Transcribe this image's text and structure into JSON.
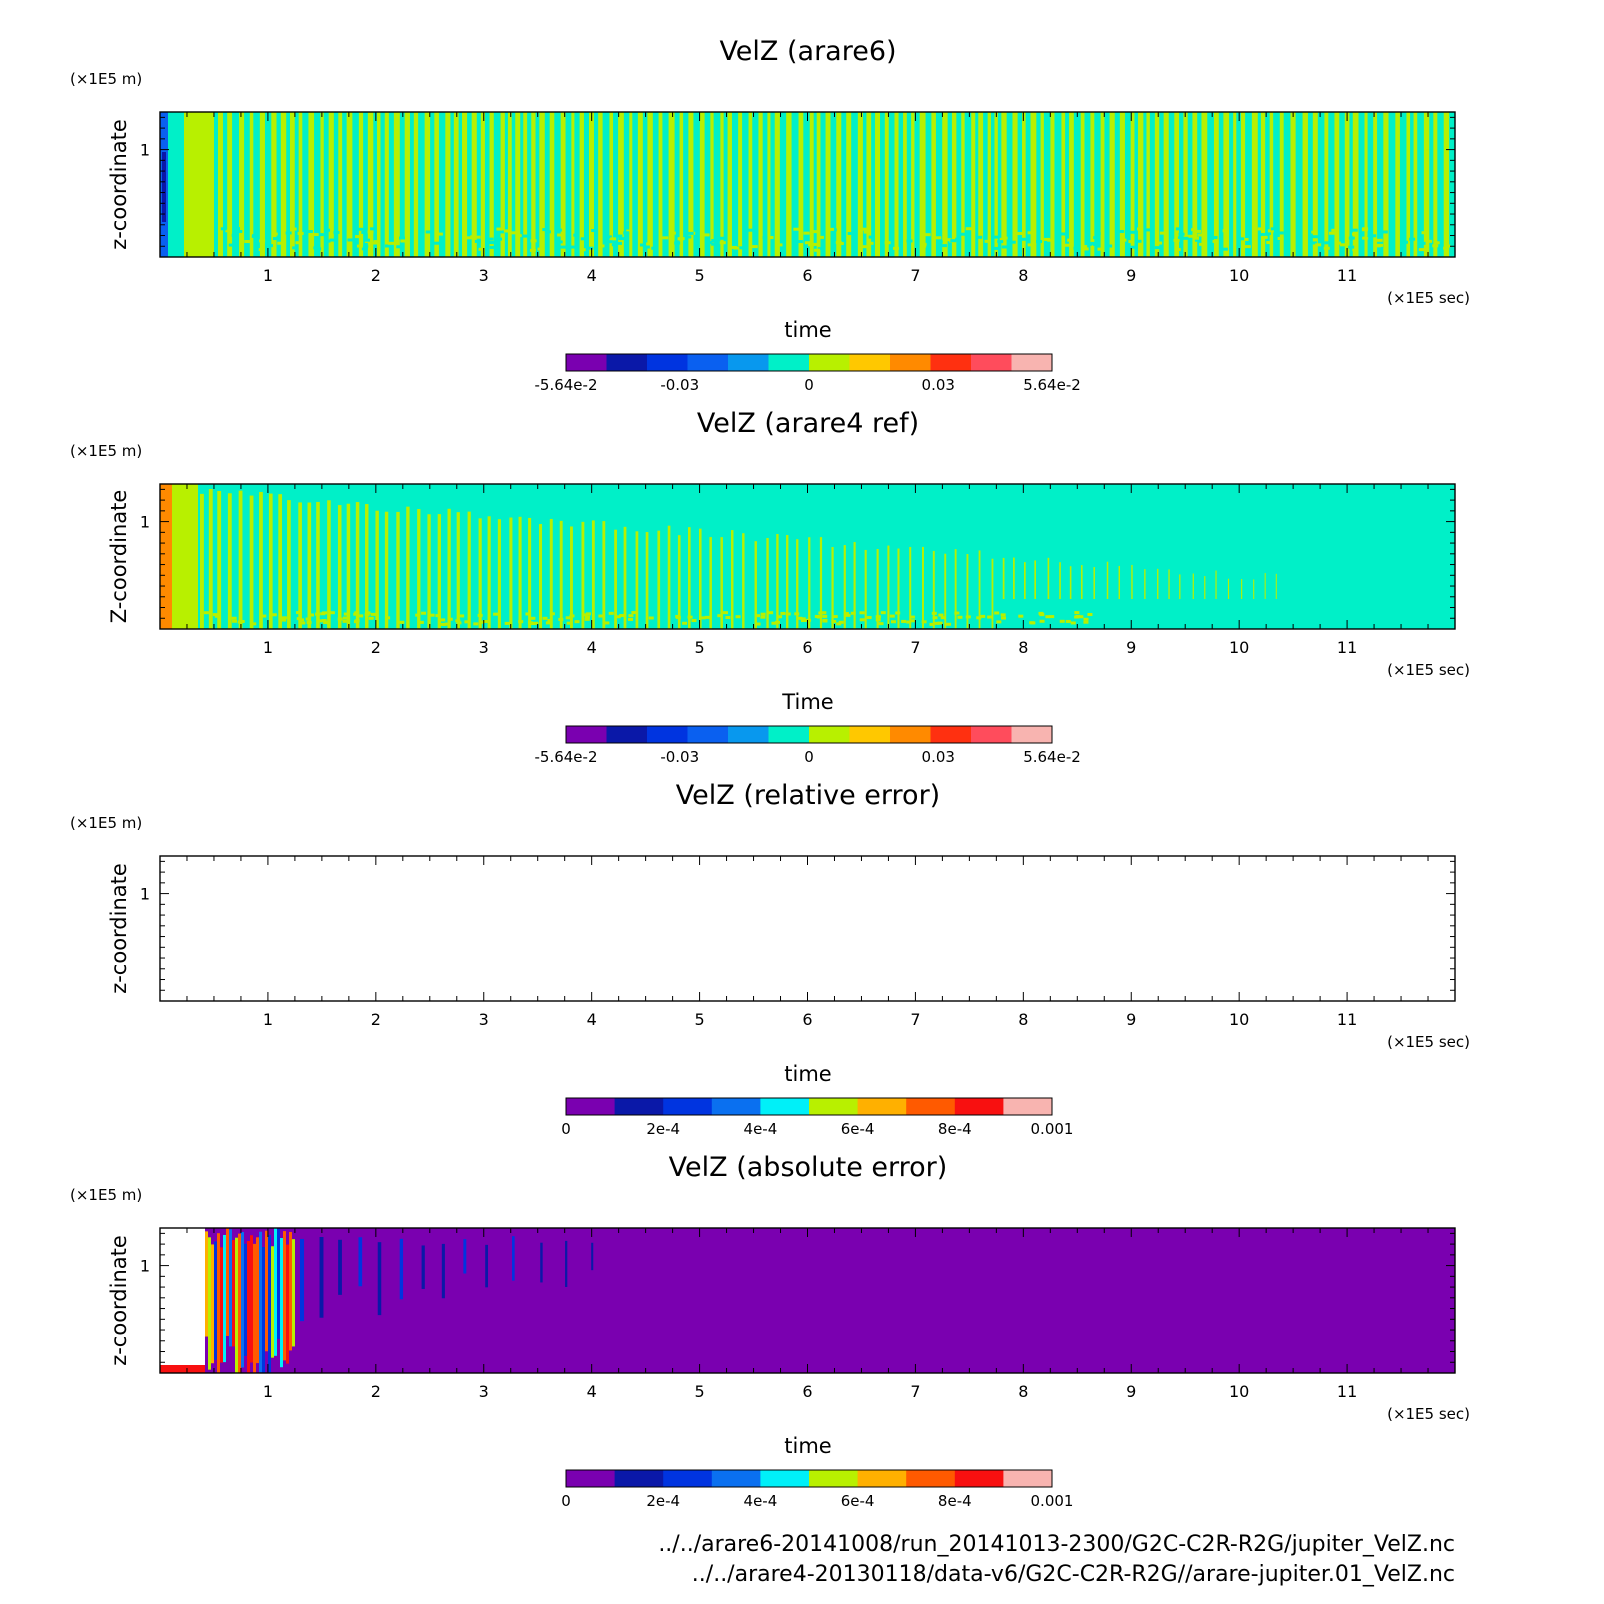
{
  "chart_data": [
    {
      "type": "heatmap",
      "title": "VelZ (arare6)",
      "xlabel": "time",
      "ylabel": "z-coordinate",
      "xunit": "(×1E5 sec)",
      "yunit": "(×1E5 m)",
      "xlim": [
        0,
        12
      ],
      "ylim": [
        0,
        1.35
      ],
      "xticks": [
        1,
        2,
        3,
        4,
        5,
        6,
        7,
        8,
        9,
        10,
        11
      ],
      "yticks": [
        1
      ],
      "pattern": "oscillating",
      "colorbar": {
        "range": [
          -0.0564,
          0.0564
        ],
        "tick_labels": [
          "-5.64e-2",
          "-0.03",
          "0",
          "0.03",
          "5.64e-2"
        ],
        "colors": [
          "#7a00b0",
          "#0a18a8",
          "#0034e0",
          "#0a60f0",
          "#0898ee",
          "#00f0c8",
          "#b8f000",
          "#ffc800",
          "#ff8a00",
          "#ff3010",
          "#ff4c5c",
          "#f8b4b0"
        ]
      }
    },
    {
      "type": "heatmap",
      "title": "VelZ (arare4 ref)",
      "xlabel": "Time",
      "ylabel": "Z-coordinate",
      "xunit": "(×1E5 sec)",
      "yunit": "(×1E5 m)",
      "xlim": [
        0,
        12
      ],
      "ylim": [
        0,
        1.35
      ],
      "xticks": [
        1,
        2,
        3,
        4,
        5,
        6,
        7,
        8,
        9,
        10,
        11
      ],
      "yticks": [
        1
      ],
      "pattern": "decaying",
      "colorbar": {
        "range": [
          -0.0564,
          0.0564
        ],
        "tick_labels": [
          "-5.64e-2",
          "-0.03",
          "0",
          "0.03",
          "5.64e-2"
        ],
        "colors": [
          "#7a00b0",
          "#0a18a8",
          "#0034e0",
          "#0a60f0",
          "#0898ee",
          "#00f0c8",
          "#b8f000",
          "#ffc800",
          "#ff8a00",
          "#ff3010",
          "#ff4c5c",
          "#f8b4b0"
        ]
      }
    },
    {
      "type": "heatmap",
      "title": "VelZ (relative error)",
      "xlabel": "time",
      "ylabel": "z-coordinate",
      "xunit": "(×1E5 sec)",
      "yunit": "(×1E5 m)",
      "xlim": [
        0,
        12
      ],
      "ylim": [
        0,
        1.35
      ],
      "xticks": [
        1,
        2,
        3,
        4,
        5,
        6,
        7,
        8,
        9,
        10,
        11
      ],
      "yticks": [
        1
      ],
      "pattern": "empty",
      "colorbar": {
        "range": [
          0,
          0.001
        ],
        "tick_labels": [
          "0",
          "2e-4",
          "4e-4",
          "6e-4",
          "8e-4",
          "0.001"
        ],
        "colors": [
          "#7a00b0",
          "#0a18a8",
          "#0034e0",
          "#0a70f0",
          "#00f0f8",
          "#b8f000",
          "#ffb000",
          "#ff5a00",
          "#f81010",
          "#f8b4b0"
        ]
      }
    },
    {
      "type": "heatmap",
      "title": "VelZ (absolute error)",
      "xlabel": "time",
      "ylabel": "z-coordinate",
      "xunit": "(×1E5 sec)",
      "yunit": "(×1E5 m)",
      "xlim": [
        0,
        12
      ],
      "ylim": [
        0,
        1.35
      ],
      "xticks": [
        1,
        2,
        3,
        4,
        5,
        6,
        7,
        8,
        9,
        10,
        11
      ],
      "yticks": [
        1
      ],
      "pattern": "error",
      "colorbar": {
        "range": [
          0,
          0.001
        ],
        "tick_labels": [
          "0",
          "2e-4",
          "4e-4",
          "6e-4",
          "8e-4",
          "0.001"
        ],
        "colors": [
          "#7a00b0",
          "#0a18a8",
          "#0034e0",
          "#0a70f0",
          "#00f0f8",
          "#b8f000",
          "#ffb000",
          "#ff5a00",
          "#f81010",
          "#f8b4b0"
        ]
      }
    }
  ],
  "footer": {
    "line1": "../../arare6-20141008/run_20141013-2300/G2C-C2R-R2G/jupiter_VelZ.nc",
    "line2": "../../arare4-20130118/data-v6/G2C-C2R-R2G//arare-jupiter.01_VelZ.nc"
  }
}
